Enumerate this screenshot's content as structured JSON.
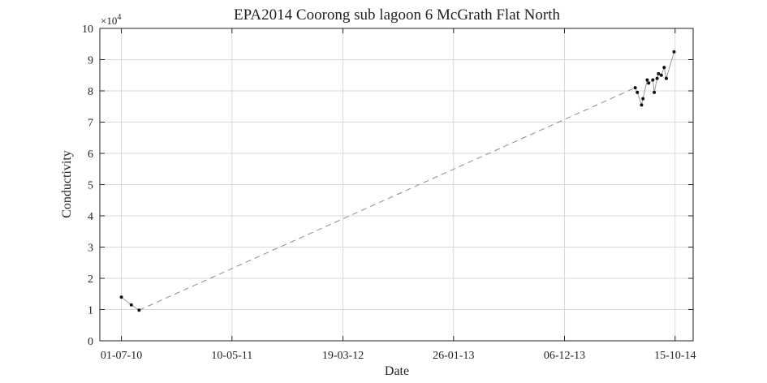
{
  "chart_data": {
    "type": "line",
    "title": "EPA2014 Coorong sub lagoon 6 McGrath Flat North",
    "xlabel": "Date",
    "ylabel": "Conductivity",
    "y_exponent_prefix": "×10",
    "y_exponent": "4",
    "x_tick_labels": [
      "01-07-10",
      "10-05-11",
      "19-03-12",
      "26-01-13",
      "06-12-13",
      "15-10-14"
    ],
    "x_tick_dates": [
      "2010-07-01",
      "2011-05-10",
      "2012-03-19",
      "2013-01-26",
      "2013-12-06",
      "2014-10-15"
    ],
    "xlim": [
      "2010-05-01",
      "2014-12-05"
    ],
    "y_tick_labels": [
      "0",
      "1",
      "2",
      "3",
      "4",
      "5",
      "6",
      "7",
      "8",
      "9",
      "10"
    ],
    "ylim": [
      0,
      100000
    ],
    "grid": true,
    "colors": {
      "axes": "#222222",
      "grid": "#d9d9d9",
      "marker": "#111111",
      "line": "#999999",
      "gap_line": "#8c8c8c"
    },
    "series": [
      {
        "values": [
          {
            "x": "2010-07-01",
            "y": 14000
          },
          {
            "x": "2010-07-29",
            "y": 11500
          },
          {
            "x": "2010-08-20",
            "y": 9800
          },
          {
            "x": "2014-06-24",
            "y": 81000
          },
          {
            "x": "2014-06-30",
            "y": 79500
          },
          {
            "x": "2014-07-12",
            "y": 75500
          },
          {
            "x": "2014-07-16",
            "y": 77500
          },
          {
            "x": "2014-07-28",
            "y": 83500
          },
          {
            "x": "2014-08-01",
            "y": 82500
          },
          {
            "x": "2014-08-13",
            "y": 83500
          },
          {
            "x": "2014-08-17",
            "y": 79500
          },
          {
            "x": "2014-08-25",
            "y": 84000
          },
          {
            "x": "2014-08-29",
            "y": 85500
          },
          {
            "x": "2014-09-06",
            "y": 85000
          },
          {
            "x": "2014-09-14",
            "y": 87500
          },
          {
            "x": "2014-09-20",
            "y": 84000
          },
          {
            "x": "2014-10-12",
            "y": 92500
          }
        ]
      }
    ]
  }
}
